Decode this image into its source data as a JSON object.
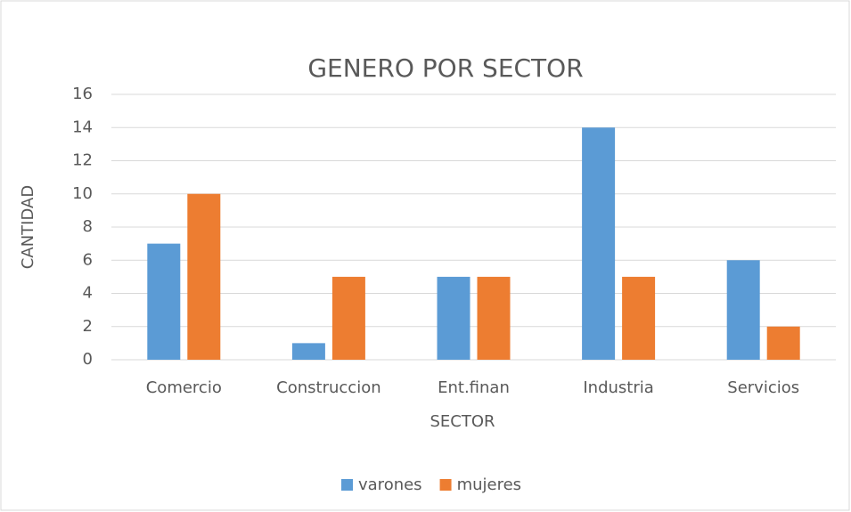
{
  "chart_data": {
    "type": "bar",
    "title": "GENERO POR SECTOR",
    "x_label": "SECTOR",
    "y_label": "CANTIDAD",
    "categories": [
      "Comercio",
      "Construccion",
      "Ent.finan",
      "Industria",
      "Servicios"
    ],
    "series": [
      {
        "name": "varones",
        "color": "#5b9bd5",
        "values": [
          7,
          1,
          5,
          14,
          6
        ]
      },
      {
        "name": "mujeres",
        "color": "#ed7d31",
        "values": [
          10,
          5,
          5,
          5,
          2
        ]
      }
    ],
    "ylim": [
      0,
      16
    ],
    "yticks": [
      0,
      2,
      4,
      6,
      8,
      10,
      12,
      14,
      16
    ],
    "grid": true,
    "legend": "bottom"
  }
}
